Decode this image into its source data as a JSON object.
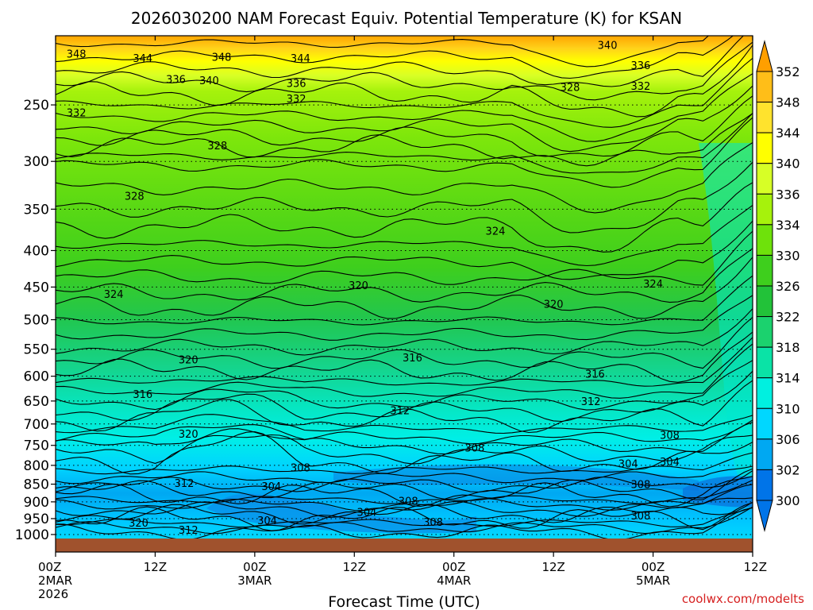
{
  "chart_data": {
    "type": "heatmap",
    "title": "2026030200 NAM Forecast Equiv. Potential Temperature (K) for KSAN",
    "xlabel": "Forecast Time (UTC)",
    "ylabel": "",
    "credit": "coolwx.com/modelts",
    "x_ticks": [
      {
        "hour": 0,
        "lines": [
          "00Z",
          "2MAR",
          "2026"
        ]
      },
      {
        "hour": 12,
        "lines": [
          "12Z"
        ]
      },
      {
        "hour": 24,
        "lines": [
          "00Z",
          "3MAR"
        ]
      },
      {
        "hour": 36,
        "lines": [
          "12Z"
        ]
      },
      {
        "hour": 48,
        "lines": [
          "00Z",
          "4MAR"
        ]
      },
      {
        "hour": 60,
        "lines": [
          "12Z"
        ]
      },
      {
        "hour": 72,
        "lines": [
          "00Z",
          "5MAR"
        ]
      },
      {
        "hour": 84,
        "lines": [
          "12Z"
        ]
      }
    ],
    "xlim_hours": [
      0,
      84
    ],
    "y_ticks": [
      250,
      300,
      350,
      400,
      450,
      500,
      550,
      600,
      650,
      700,
      750,
      800,
      850,
      900,
      950,
      1000
    ],
    "ylim_hpa": [
      1013,
      200
    ],
    "y_scale": "log",
    "grid": true,
    "colorbar": {
      "labels": [
        352,
        348,
        344,
        340,
        336,
        334,
        330,
        326,
        322,
        318,
        314,
        310,
        306,
        302,
        300
      ],
      "colors": [
        "#ff9f00",
        "#ffbe18",
        "#ffe32d",
        "#ffff00",
        "#d7ff26",
        "#a6f20c",
        "#6ee20b",
        "#3ecf1d",
        "#22c239",
        "#1bd26e",
        "#0ae3a6",
        "#00f0e0",
        "#00d7ff",
        "#00a8f2",
        "#0074e8"
      ]
    },
    "contour_labels": [
      {
        "v": "348",
        "h": 2.5,
        "p": 212
      },
      {
        "v": "344",
        "h": 10.5,
        "p": 215
      },
      {
        "v": "348",
        "h": 20,
        "p": 214
      },
      {
        "v": "344",
        "h": 29.5,
        "p": 215
      },
      {
        "v": "340",
        "h": 66.5,
        "p": 206
      },
      {
        "v": "336",
        "h": 70.5,
        "p": 220
      },
      {
        "v": "336",
        "h": 14.5,
        "p": 230
      },
      {
        "v": "340",
        "h": 18.5,
        "p": 231
      },
      {
        "v": "336",
        "h": 29,
        "p": 233
      },
      {
        "v": "332",
        "h": 70.5,
        "p": 235
      },
      {
        "v": "328",
        "h": 62,
        "p": 236
      },
      {
        "v": "332",
        "h": 2.5,
        "p": 256
      },
      {
        "v": "332",
        "h": 29,
        "p": 245
      },
      {
        "v": "328",
        "h": 19.5,
        "p": 285
      },
      {
        "v": "328",
        "h": 9.5,
        "p": 335
      },
      {
        "v": "324",
        "h": 53,
        "p": 375
      },
      {
        "v": "320",
        "h": 36.5,
        "p": 447
      },
      {
        "v": "324",
        "h": 7,
        "p": 460
      },
      {
        "v": "324",
        "h": 72,
        "p": 445
      },
      {
        "v": "320",
        "h": 60,
        "p": 475
      },
      {
        "v": "320",
        "h": 16,
        "p": 568
      },
      {
        "v": "316",
        "h": 43,
        "p": 565
      },
      {
        "v": "316",
        "h": 65,
        "p": 595
      },
      {
        "v": "316",
        "h": 10.5,
        "p": 635
      },
      {
        "v": "312",
        "h": 41.5,
        "p": 670
      },
      {
        "v": "312",
        "h": 64.5,
        "p": 650
      },
      {
        "v": "320",
        "h": 16,
        "p": 722
      },
      {
        "v": "308",
        "h": 50.5,
        "p": 755
      },
      {
        "v": "308",
        "h": 74,
        "p": 725
      },
      {
        "v": "304",
        "h": 69,
        "p": 795
      },
      {
        "v": "304",
        "h": 74,
        "p": 790
      },
      {
        "v": "308",
        "h": 29.5,
        "p": 805
      },
      {
        "v": "312",
        "h": 15.5,
        "p": 847
      },
      {
        "v": "304",
        "h": 26,
        "p": 855
      },
      {
        "v": "308",
        "h": 70.5,
        "p": 850
      },
      {
        "v": "308",
        "h": 42.5,
        "p": 897
      },
      {
        "v": "304",
        "h": 37.5,
        "p": 930
      },
      {
        "v": "308",
        "h": 70.5,
        "p": 940
      },
      {
        "v": "308",
        "h": 45.5,
        "p": 960
      },
      {
        "v": "304",
        "h": 25.5,
        "p": 955
      },
      {
        "v": "320",
        "h": 10,
        "p": 962
      },
      {
        "v": "312",
        "h": 16,
        "p": 985
      }
    ]
  }
}
